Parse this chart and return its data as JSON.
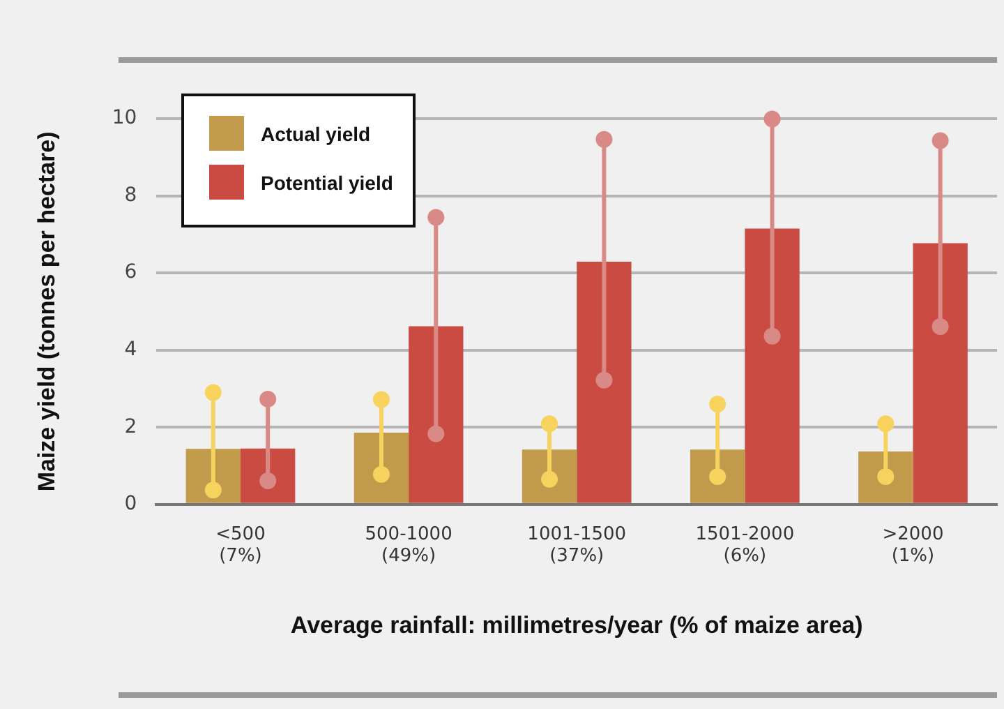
{
  "chart_data": {
    "type": "bar",
    "xlabel": "Average rainfall: millimetres/year (% of maize area)",
    "ylabel": "Maize yield (tonnes per hectare)",
    "categories": [
      "<500\n(7%)",
      "500-1000\n(49%)",
      "1001-1500\n(37%)",
      "1501-2000\n(6%)",
      ">2000\n(1%)"
    ],
    "series": [
      {
        "name": "Actual yield",
        "color": "#c19a4b",
        "values": [
          1.44,
          1.86,
          1.42,
          1.42,
          1.37
        ]
      },
      {
        "name": "Potential yield",
        "color": "#c94b41",
        "values": [
          1.45,
          4.62,
          6.29,
          7.15,
          6.77
        ]
      },
      {
        "type": "scatter",
        "color": "#f7d25c",
        "x": [
          "<500\n(7%)",
          "500-1000\n(49%)",
          "1001-1500\n(37%)",
          "1501-2000\n(6%)",
          ">2000\n(1%)"
        ],
        "values": [
          0.37,
          0.78,
          0.65,
          0.72,
          0.72
        ]
      },
      {
        "type": "scatter",
        "color": "#f7d25c",
        "x": [
          "<500\n(7%)",
          "500-1000\n(49%)",
          "1001-1500\n(37%)",
          "1501-2000\n(6%)",
          ">2000\n(1%)"
        ],
        "values": [
          2.9,
          2.72,
          2.09,
          2.6,
          2.09
        ]
      },
      {
        "type": "scatter",
        "color": "#da8a86",
        "x": [
          "<500\n(7%)",
          "500-1000\n(49%)",
          "1001-1500\n(37%)",
          "1501-2000\n(6%)",
          ">2000\n(1%)"
        ],
        "values": [
          0.61,
          1.83,
          3.22,
          4.36,
          4.61
        ]
      },
      {
        "type": "scatter",
        "color": "#da8a86",
        "x": [
          "<500\n(7%)",
          "500-1000\n(49%)",
          "1001-1500\n(37%)",
          "1501-2000\n(6%)",
          ">2000\n(1%)"
        ],
        "values": [
          2.73,
          7.44,
          9.46,
          9.99,
          9.43
        ]
      }
    ],
    "ylim": [
      0,
      10
    ],
    "yticks": [
      0,
      2,
      4,
      6,
      8,
      10
    ],
    "grid": "y",
    "legend": "top left",
    "marker": "circle"
  }
}
